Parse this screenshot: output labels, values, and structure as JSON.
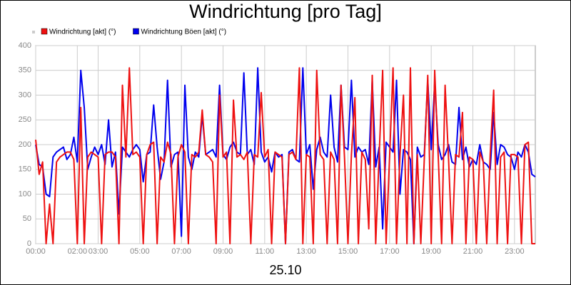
{
  "chart_data": {
    "type": "line",
    "title": "Windrichtung [pro Tag]",
    "xlabel": "25.10",
    "x": [
      0,
      10,
      20,
      30,
      40,
      50,
      60,
      70,
      80,
      90,
      100,
      110,
      120,
      130,
      140,
      150,
      160,
      170,
      180,
      190,
      200,
      210,
      220,
      230,
      240,
      250,
      260,
      270,
      280,
      290,
      300,
      310,
      320,
      330,
      340,
      350,
      360,
      370,
      380,
      390,
      400,
      410,
      420,
      430,
      440,
      450,
      460,
      470,
      480,
      490,
      500,
      510,
      520,
      530,
      540,
      550,
      560,
      570,
      580,
      590,
      600,
      610,
      620,
      630,
      640,
      650,
      660,
      670,
      680,
      690,
      700,
      710,
      720,
      730,
      740,
      750,
      760,
      770,
      780,
      790,
      800,
      810,
      820,
      830,
      840,
      850,
      860,
      870,
      880,
      890,
      900,
      910,
      920,
      930,
      940,
      950,
      960,
      970,
      980,
      990,
      1000,
      1010,
      1020,
      1030,
      1040,
      1050,
      1060,
      1070,
      1080,
      1090,
      1100,
      1110,
      1120,
      1130,
      1140,
      1150,
      1160,
      1170,
      1180,
      1190,
      1200,
      1210,
      1220,
      1230,
      1240,
      1250,
      1260,
      1270,
      1280,
      1290,
      1300,
      1310,
      1320,
      1330,
      1340,
      1350,
      1360,
      1370,
      1380,
      1390,
      1400,
      1410,
      1420,
      1430,
      1440
    ],
    "series": [
      {
        "name": "Windrichtung [akt] (°)",
        "color": "#ee1111",
        "values": [
          210,
          140,
          165,
          0,
          80,
          0,
          165,
          175,
          180,
          185,
          185,
          170,
          0,
          275,
          0,
          175,
          185,
          180,
          175,
          0,
          180,
          185,
          185,
          175,
          0,
          320,
          175,
          355,
          180,
          185,
          175,
          0,
          180,
          200,
          205,
          0,
          175,
          165,
          205,
          180,
          0,
          175,
          200,
          185,
          0,
          180,
          175,
          185,
          270,
          180,
          175,
          165,
          0,
          300,
          175,
          185,
          0,
          290,
          175,
          180,
          170,
          185,
          0,
          180,
          175,
          305,
          175,
          190,
          0,
          185,
          180,
          175,
          0,
          180,
          185,
          170,
          355,
          0,
          180,
          175,
          0,
          350,
          180,
          170,
          0,
          185,
          170,
          0,
          320,
          175,
          0,
          180,
          295,
          0,
          185,
          170,
          30,
          340,
          0,
          180,
          350,
          0,
          175,
          355,
          0,
          180,
          300,
          0,
          355,
          0,
          180,
          0,
          170,
          340,
          0,
          350,
          180,
          0,
          320,
          170,
          0,
          180,
          175,
          265,
          0,
          175,
          170,
          0,
          185,
          165,
          0,
          180,
          310,
          0,
          175,
          185,
          0,
          180,
          180,
          175,
          0,
          200,
          205,
          0,
          0
        ]
      },
      {
        "name": "Windrichtung Böen [akt] (°)",
        "color": "#0000ee",
        "values": [
          200,
          160,
          155,
          100,
          95,
          175,
          185,
          190,
          195,
          170,
          180,
          215,
          165,
          350,
          275,
          150,
          175,
          195,
          180,
          200,
          160,
          250,
          155,
          185,
          60,
          195,
          185,
          175,
          190,
          200,
          190,
          125,
          180,
          185,
          280,
          195,
          130,
          165,
          330,
          155,
          180,
          185,
          15,
          320,
          175,
          150,
          185,
          175,
          260,
          180,
          185,
          190,
          175,
          320,
          180,
          170,
          195,
          205,
          185,
          180,
          345,
          180,
          190,
          160,
          355,
          185,
          165,
          175,
          145,
          185,
          175,
          180,
          0,
          185,
          190,
          170,
          165,
          355,
          180,
          200,
          110,
          190,
          215,
          185,
          175,
          300,
          195,
          165,
          320,
          195,
          190,
          330,
          175,
          195,
          185,
          190,
          160,
          330,
          155,
          195,
          30,
          205,
          195,
          185,
          330,
          100,
          190,
          185,
          170,
          0,
          195,
          175,
          180,
          330,
          190,
          325,
          200,
          170,
          180,
          200,
          165,
          160,
          275,
          170,
          195,
          155,
          170,
          160,
          200,
          165,
          160,
          150,
          265,
          160,
          200,
          195,
          180,
          175,
          150,
          185,
          175,
          200,
          185,
          140,
          135
        ]
      }
    ],
    "xlim": [
      0,
      1440
    ],
    "xticks": [
      {
        "value": 0,
        "label": "00:00"
      },
      {
        "value": 120,
        "label": "02:00"
      },
      {
        "value": 180,
        "label": "03:00"
      },
      {
        "value": 300,
        "label": "05:00"
      },
      {
        "value": 420,
        "label": "07:00"
      },
      {
        "value": 540,
        "label": "09:00"
      },
      {
        "value": 660,
        "label": "11:00"
      },
      {
        "value": 780,
        "label": "13:00"
      },
      {
        "value": 900,
        "label": "15:00"
      },
      {
        "value": 1020,
        "label": "17:00"
      },
      {
        "value": 1140,
        "label": "19:00"
      },
      {
        "value": 1260,
        "label": "21:00"
      },
      {
        "value": 1380,
        "label": "23:00"
      }
    ],
    "ylim": [
      0,
      400
    ],
    "yticks": [
      0,
      50,
      100,
      150,
      200,
      250,
      300,
      350,
      400
    ],
    "grid": true
  }
}
